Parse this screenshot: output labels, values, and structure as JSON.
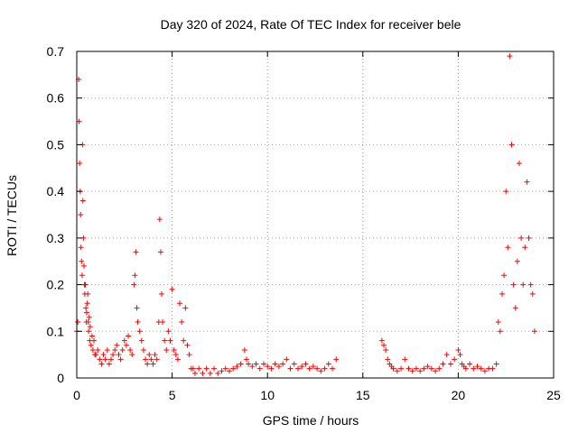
{
  "chart_data": {
    "type": "scatter",
    "title": "Day 320 of 2024, Rate Of TEC Index for receiver bele",
    "xlabel": "GPS time / hours",
    "ylabel": "ROTI / TECUs",
    "xlim": [
      0,
      25
    ],
    "ylim": [
      0,
      0.7
    ],
    "xticks": [
      0,
      5,
      10,
      15,
      20,
      25
    ],
    "yticks": [
      0,
      0.1,
      0.2,
      0.3,
      0.4,
      0.5,
      0.6,
      0.7
    ],
    "xtick_labels": [
      "0",
      "5",
      "10",
      "15",
      "20",
      "25"
    ],
    "ytick_labels": [
      "0",
      "0.1",
      "0.2",
      "0.3",
      "0.4",
      "0.5",
      "0.6",
      "0.7"
    ],
    "grid": true,
    "legend": "none",
    "marker": "+",
    "color": "#ff0000",
    "series": [
      {
        "x": [
          0.0,
          0.05,
          0.1,
          0.12,
          0.15,
          0.18,
          0.2,
          0.22,
          0.25,
          0.28,
          0.3,
          0.32,
          0.35,
          0.38,
          0.4,
          0.42,
          0.45,
          0.48,
          0.5,
          0.52,
          0.55,
          0.58,
          0.6,
          0.62,
          0.65,
          0.68,
          0.7,
          0.75,
          0.8,
          0.85,
          0.9,
          0.95,
          1.0,
          1.1,
          1.2,
          1.3,
          1.4,
          1.5,
          1.6,
          1.7,
          1.8,
          1.9,
          2.0,
          2.1,
          2.2,
          2.3,
          2.4,
          2.5,
          2.6,
          2.7,
          2.8,
          2.9,
          3.0,
          3.05,
          3.1,
          3.15,
          3.2,
          3.3,
          3.4,
          3.5,
          3.6,
          3.7,
          3.8,
          3.9,
          4.0,
          4.1,
          4.2,
          4.3,
          4.35,
          4.4,
          4.45,
          4.5,
          4.6,
          4.7,
          4.8,
          4.9,
          5.0,
          5.1,
          5.2,
          5.3,
          5.4,
          5.5,
          5.6,
          5.7,
          5.8,
          5.9,
          6.0,
          6.1,
          6.2,
          6.4,
          6.6,
          6.8,
          7.0,
          7.2,
          7.4,
          7.6,
          7.8,
          8.0,
          8.2,
          8.4,
          8.6,
          8.8,
          8.9,
          9.0,
          9.2,
          9.4,
          9.6,
          9.8,
          10.0,
          10.2,
          10.4,
          10.6,
          10.8,
          11.0,
          11.2,
          11.4,
          11.6,
          11.8,
          12.0,
          12.2,
          12.4,
          12.6,
          12.8,
          13.0,
          13.2,
          13.4,
          13.6,
          16.0,
          16.1,
          16.2,
          16.3,
          16.4,
          16.5,
          16.6,
          16.8,
          17.0,
          17.2,
          17.4,
          17.6,
          17.8,
          18.0,
          18.2,
          18.4,
          18.6,
          18.8,
          19.0,
          19.2,
          19.4,
          19.6,
          19.8,
          20.0,
          20.1,
          20.2,
          20.3,
          20.4,
          20.6,
          20.8,
          21.0,
          21.2,
          21.4,
          21.6,
          21.8,
          22.0,
          22.1,
          22.2,
          22.3,
          22.4,
          22.5,
          22.6,
          22.7,
          22.8,
          22.9,
          23.0,
          23.1,
          23.2,
          23.3,
          23.4,
          23.5,
          23.6,
          23.7,
          23.8,
          23.9,
          24.0
        ],
        "y": [
          0.1,
          0.12,
          0.64,
          0.55,
          0.46,
          0.4,
          0.35,
          0.28,
          0.25,
          0.22,
          0.5,
          0.38,
          0.3,
          0.24,
          0.2,
          0.18,
          0.2,
          0.15,
          0.12,
          0.14,
          0.16,
          0.18,
          0.12,
          0.1,
          0.13,
          0.08,
          0.11,
          0.07,
          0.09,
          0.06,
          0.08,
          0.05,
          0.05,
          0.06,
          0.04,
          0.03,
          0.05,
          0.04,
          0.06,
          0.03,
          0.04,
          0.05,
          0.06,
          0.07,
          0.05,
          0.04,
          0.06,
          0.08,
          0.07,
          0.09,
          0.06,
          0.05,
          0.2,
          0.22,
          0.27,
          0.15,
          0.12,
          0.1,
          0.08,
          0.06,
          0.04,
          0.03,
          0.05,
          0.04,
          0.03,
          0.05,
          0.04,
          0.12,
          0.34,
          0.27,
          0.18,
          0.12,
          0.08,
          0.06,
          0.1,
          0.08,
          0.19,
          0.06,
          0.05,
          0.04,
          0.16,
          0.12,
          0.08,
          0.15,
          0.07,
          0.05,
          0.02,
          0.02,
          0.01,
          0.02,
          0.01,
          0.02,
          0.01,
          0.02,
          0.01,
          0.015,
          0.02,
          0.015,
          0.02,
          0.025,
          0.03,
          0.06,
          0.04,
          0.03,
          0.025,
          0.03,
          0.02,
          0.03,
          0.025,
          0.02,
          0.03,
          0.025,
          0.03,
          0.04,
          0.02,
          0.03,
          0.02,
          0.025,
          0.03,
          0.02,
          0.025,
          0.02,
          0.015,
          0.02,
          0.03,
          0.02,
          0.04,
          0.08,
          0.07,
          0.06,
          0.04,
          0.03,
          0.025,
          0.02,
          0.015,
          0.02,
          0.04,
          0.02,
          0.015,
          0.02,
          0.015,
          0.02,
          0.025,
          0.02,
          0.015,
          0.02,
          0.03,
          0.05,
          0.03,
          0.04,
          0.06,
          0.05,
          0.03,
          0.025,
          0.02,
          0.03,
          0.02,
          0.025,
          0.02,
          0.015,
          0.02,
          0.02,
          0.03,
          0.12,
          0.1,
          0.18,
          0.22,
          0.4,
          0.28,
          0.69,
          0.5,
          0.2,
          0.15,
          0.25,
          0.46,
          0.3,
          0.2,
          0.28,
          0.42,
          0.3,
          0.2,
          0.18,
          0.1
        ]
      }
    ]
  }
}
